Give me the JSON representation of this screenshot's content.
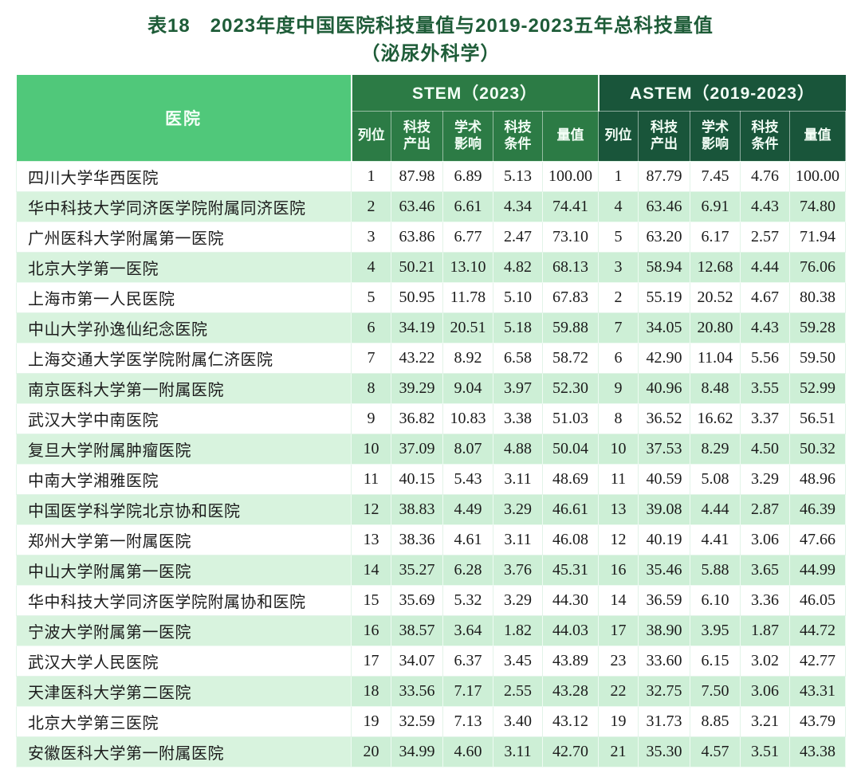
{
  "title": {
    "line1": "表18　2023年度中国医院科技量值与2019-2023五年总科技量值",
    "line2": "（泌尿外科学）"
  },
  "table": {
    "hospital_header": "医院",
    "groups": [
      {
        "label": "STEM（2023）"
      },
      {
        "label": "ASTEM（2019-2023）"
      }
    ],
    "sub_headers": [
      "列位",
      "科技\n产出",
      "学术\n影响",
      "科技\n条件",
      "量值"
    ],
    "rows": [
      {
        "hospital": "四川大学华西医院",
        "stem": [
          "1",
          "87.98",
          "6.89",
          "5.13",
          "100.00"
        ],
        "astem": [
          "1",
          "87.79",
          "7.45",
          "4.76",
          "100.00"
        ]
      },
      {
        "hospital": "华中科技大学同济医学院附属同济医院",
        "stem": [
          "2",
          "63.46",
          "6.61",
          "4.34",
          "74.41"
        ],
        "astem": [
          "4",
          "63.46",
          "6.91",
          "4.43",
          "74.80"
        ]
      },
      {
        "hospital": "广州医科大学附属第一医院",
        "stem": [
          "3",
          "63.86",
          "6.77",
          "2.47",
          "73.10"
        ],
        "astem": [
          "5",
          "63.20",
          "6.17",
          "2.57",
          "71.94"
        ]
      },
      {
        "hospital": "北京大学第一医院",
        "stem": [
          "4",
          "50.21",
          "13.10",
          "4.82",
          "68.13"
        ],
        "astem": [
          "3",
          "58.94",
          "12.68",
          "4.44",
          "76.06"
        ]
      },
      {
        "hospital": "上海市第一人民医院",
        "stem": [
          "5",
          "50.95",
          "11.78",
          "5.10",
          "67.83"
        ],
        "astem": [
          "2",
          "55.19",
          "20.52",
          "4.67",
          "80.38"
        ]
      },
      {
        "hospital": "中山大学孙逸仙纪念医院",
        "stem": [
          "6",
          "34.19",
          "20.51",
          "5.18",
          "59.88"
        ],
        "astem": [
          "7",
          "34.05",
          "20.80",
          "4.43",
          "59.28"
        ]
      },
      {
        "hospital": "上海交通大学医学院附属仁济医院",
        "stem": [
          "7",
          "43.22",
          "8.92",
          "6.58",
          "58.72"
        ],
        "astem": [
          "6",
          "42.90",
          "11.04",
          "5.56",
          "59.50"
        ]
      },
      {
        "hospital": "南京医科大学第一附属医院",
        "stem": [
          "8",
          "39.29",
          "9.04",
          "3.97",
          "52.30"
        ],
        "astem": [
          "9",
          "40.96",
          "8.48",
          "3.55",
          "52.99"
        ]
      },
      {
        "hospital": "武汉大学中南医院",
        "stem": [
          "9",
          "36.82",
          "10.83",
          "3.38",
          "51.03"
        ],
        "astem": [
          "8",
          "36.52",
          "16.62",
          "3.37",
          "56.51"
        ]
      },
      {
        "hospital": "复旦大学附属肿瘤医院",
        "stem": [
          "10",
          "37.09",
          "8.07",
          "4.88",
          "50.04"
        ],
        "astem": [
          "10",
          "37.53",
          "8.29",
          "4.50",
          "50.32"
        ]
      },
      {
        "hospital": "中南大学湘雅医院",
        "stem": [
          "11",
          "40.15",
          "5.43",
          "3.11",
          "48.69"
        ],
        "astem": [
          "11",
          "40.59",
          "5.08",
          "3.29",
          "48.96"
        ]
      },
      {
        "hospital": "中国医学科学院北京协和医院",
        "stem": [
          "12",
          "38.83",
          "4.49",
          "3.29",
          "46.61"
        ],
        "astem": [
          "13",
          "39.08",
          "4.44",
          "2.87",
          "46.39"
        ]
      },
      {
        "hospital": "郑州大学第一附属医院",
        "stem": [
          "13",
          "38.36",
          "4.61",
          "3.11",
          "46.08"
        ],
        "astem": [
          "12",
          "40.19",
          "4.41",
          "3.06",
          "47.66"
        ]
      },
      {
        "hospital": "中山大学附属第一医院",
        "stem": [
          "14",
          "35.27",
          "6.28",
          "3.76",
          "45.31"
        ],
        "astem": [
          "16",
          "35.46",
          "5.88",
          "3.65",
          "44.99"
        ]
      },
      {
        "hospital": "华中科技大学同济医学院附属协和医院",
        "stem": [
          "15",
          "35.69",
          "5.32",
          "3.29",
          "44.30"
        ],
        "astem": [
          "14",
          "36.59",
          "6.10",
          "3.36",
          "46.05"
        ]
      },
      {
        "hospital": "宁波大学附属第一医院",
        "stem": [
          "16",
          "38.57",
          "3.64",
          "1.82",
          "44.03"
        ],
        "astem": [
          "17",
          "38.90",
          "3.95",
          "1.87",
          "44.72"
        ]
      },
      {
        "hospital": "武汉大学人民医院",
        "stem": [
          "17",
          "34.07",
          "6.37",
          "3.45",
          "43.89"
        ],
        "astem": [
          "23",
          "33.60",
          "6.15",
          "3.02",
          "42.77"
        ]
      },
      {
        "hospital": "天津医科大学第二医院",
        "stem": [
          "18",
          "33.56",
          "7.17",
          "2.55",
          "43.28"
        ],
        "astem": [
          "22",
          "32.75",
          "7.50",
          "3.06",
          "43.31"
        ]
      },
      {
        "hospital": "北京大学第三医院",
        "stem": [
          "19",
          "32.59",
          "7.13",
          "3.40",
          "43.12"
        ],
        "astem": [
          "19",
          "31.73",
          "8.85",
          "3.21",
          "43.79"
        ]
      },
      {
        "hospital": "安徽医科大学第一附属医院",
        "stem": [
          "20",
          "34.99",
          "4.60",
          "3.11",
          "42.70"
        ],
        "astem": [
          "21",
          "35.30",
          "4.57",
          "3.51",
          "43.38"
        ]
      }
    ]
  },
  "colors": {
    "title_green": "#1e5c38",
    "hospital_header_green": "#50c87a",
    "stem_header_green": "#2c7b45",
    "astem_header_green": "#19553a",
    "row_stripe_green": "#cdefd6",
    "row_stripe_light_green": "#d8f3de"
  }
}
